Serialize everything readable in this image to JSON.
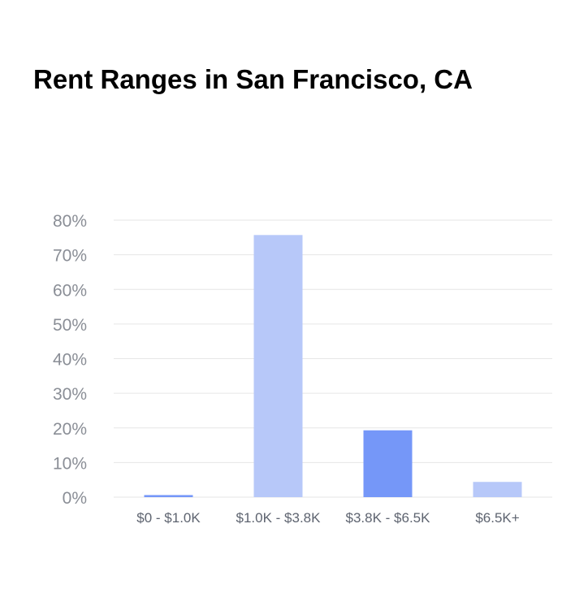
{
  "chart_data": {
    "type": "bar",
    "title": "Rent Ranges in San Francisco, CA",
    "xlabel": "",
    "ylabel": "",
    "categories": [
      "$0 - $1.0K",
      "$1.0K - $3.8K",
      "$3.8K - $6.5K",
      "$6.5K+"
    ],
    "values": [
      0.6,
      75.7,
      19.3,
      4.4
    ],
    "ylim": [
      0,
      80
    ],
    "yticks": [
      0,
      10,
      20,
      30,
      40,
      50,
      60,
      70,
      80
    ],
    "ytick_labels": [
      "0%",
      "10%",
      "20%",
      "30%",
      "40%",
      "50%",
      "60%",
      "70%",
      "80%"
    ],
    "grid": true,
    "colors": [
      "#7597f8",
      "#b7c8f9",
      "#7597f8",
      "#b7c8f9"
    ]
  }
}
